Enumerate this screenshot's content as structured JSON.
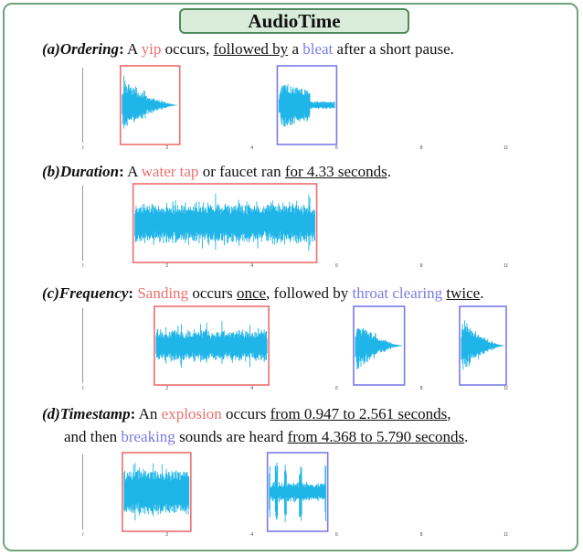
{
  "title": "AudioTime",
  "colors": {
    "waveform": "#1fb5e8",
    "event_red": "#ee6e6e",
    "event_blue": "#7b7be8",
    "frame_green": "#6fa57a"
  },
  "panels": [
    {
      "tag": "(a)Ordering",
      "caption": [
        {
          "t": "A ",
          "s": ""
        },
        {
          "t": "yip",
          "s": "r"
        },
        {
          "t": " occurs, ",
          "s": ""
        },
        {
          "t": "followed by",
          "s": "u"
        },
        {
          "t": " a ",
          "s": ""
        },
        {
          "t": "bleat",
          "s": "b"
        },
        {
          "t": " after a short pause.",
          "s": ""
        }
      ],
      "ytick": "1.1",
      "xticks": [
        "0",
        "2",
        "4",
        "6",
        "8",
        "10"
      ],
      "duration": 10,
      "events": [
        {
          "start": 0.9,
          "end": 2.3,
          "color": "red",
          "shape": "burst",
          "amp": 0.95
        },
        {
          "start": 4.6,
          "end": 6.0,
          "color": "blue",
          "shape": "bleat",
          "amp": 0.7
        }
      ]
    },
    {
      "tag": "(b)Duration",
      "caption": [
        {
          "t": "A ",
          "s": ""
        },
        {
          "t": "water tap",
          "s": "r"
        },
        {
          "t": " or faucet ran ",
          "s": ""
        },
        {
          "t": "for 4.33 seconds",
          "s": "u"
        },
        {
          "t": ".",
          "s": ""
        }
      ],
      "ytick": "1.1",
      "xticks": [
        "0",
        "2",
        "4",
        "6",
        "8",
        "10"
      ],
      "duration": 10,
      "events": [
        {
          "start": 1.2,
          "end": 5.53,
          "color": "red",
          "shape": "noise",
          "amp": 0.9
        }
      ]
    },
    {
      "tag": "(c)Frequency",
      "caption": [
        {
          "t": "Sanding",
          "s": "r"
        },
        {
          "t": " occurs ",
          "s": ""
        },
        {
          "t": "once",
          "s": "u"
        },
        {
          "t": ", followed by ",
          "s": ""
        },
        {
          "t": "throat clearing",
          "s": "b"
        },
        {
          "t": " ",
          "s": ""
        },
        {
          "t": "twice",
          "s": "u"
        },
        {
          "t": ".",
          "s": ""
        }
      ],
      "ytick": "1.1",
      "xticks": [
        "0",
        "2",
        "4",
        "6",
        "8",
        "10"
      ],
      "duration": 10,
      "events": [
        {
          "start": 1.7,
          "end": 4.4,
          "color": "red",
          "shape": "noise",
          "amp": 0.7
        },
        {
          "start": 6.4,
          "end": 7.6,
          "color": "blue",
          "shape": "burst",
          "amp": 0.95
        },
        {
          "start": 8.9,
          "end": 10.0,
          "color": "blue",
          "shape": "burst",
          "amp": 0.95
        }
      ]
    },
    {
      "tag": "(d)Timestamp",
      "caption": [
        {
          "t": "An ",
          "s": ""
        },
        {
          "t": "explosion",
          "s": "r"
        },
        {
          "t": " occurs ",
          "s": ""
        },
        {
          "t": "from 0.947 to 2.561 seconds",
          "s": "u"
        },
        {
          "t": ",",
          "s": ""
        }
      ],
      "caption2": [
        {
          "t": "and then ",
          "s": ""
        },
        {
          "t": "breaking",
          "s": "b"
        },
        {
          "t": " sounds are heard ",
          "s": ""
        },
        {
          "t": "from 4.368 to 5.790 seconds",
          "s": "u"
        },
        {
          "t": ".",
          "s": ""
        }
      ],
      "ytick": "",
      "xticks": [
        "0",
        "2",
        "4",
        "6",
        "8",
        "10"
      ],
      "duration": 10,
      "events": [
        {
          "start": 0.947,
          "end": 2.561,
          "color": "red",
          "shape": "block",
          "amp": 0.8
        },
        {
          "start": 4.368,
          "end": 5.79,
          "color": "blue",
          "shape": "breaking",
          "amp": 0.9
        }
      ]
    }
  ]
}
